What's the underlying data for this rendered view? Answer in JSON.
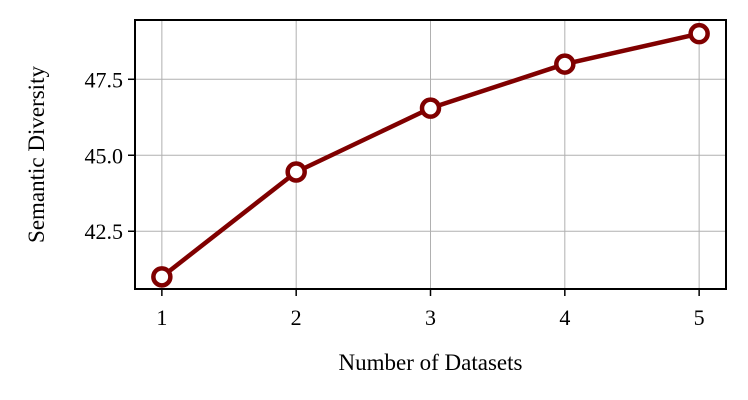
{
  "chart_data": {
    "type": "line",
    "title": "",
    "xlabel": "Number of Datasets",
    "ylabel": "Semantic Diversity",
    "x": [
      1,
      2,
      3,
      4,
      5
    ],
    "series": [
      {
        "values": [
          41.0,
          44.45,
          46.55,
          48.0,
          49.0
        ]
      }
    ],
    "xticks": [
      1,
      2,
      3,
      4,
      5
    ],
    "xtick_labels": [
      "1",
      "2",
      "3",
      "4",
      "5"
    ],
    "yticks": [
      42.5,
      45.0,
      47.5
    ],
    "ytick_labels": [
      "42.5",
      "45.0",
      "47.5"
    ],
    "xlim": [
      0.8,
      5.2
    ],
    "ylim": [
      40.6,
      49.45
    ],
    "grid": true,
    "line_color": "#800000",
    "marker": "hollow-circle",
    "grid_color": "#b0b0b0"
  }
}
